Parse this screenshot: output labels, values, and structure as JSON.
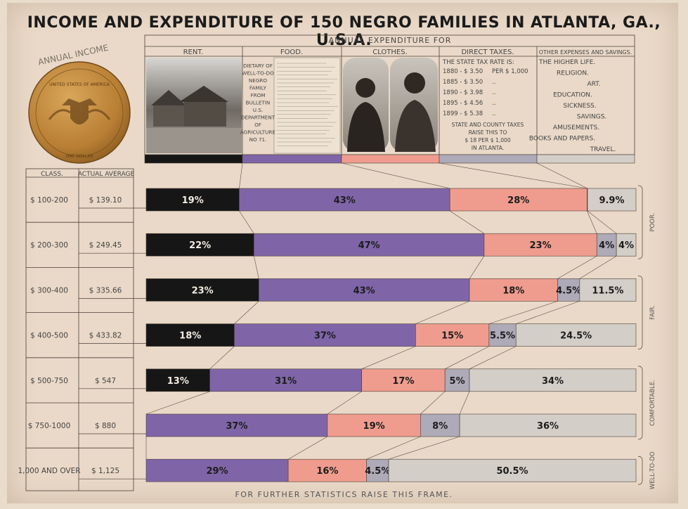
{
  "title": "INCOME AND EXPENDITURE OF 150 NEGRO FAMILIES IN ATLANTA, GA., U.S.A.",
  "footer": "FOR FURTHER STATISTICS RAISE THIS FRAME.",
  "seal": {
    "arc_text": "ANNUAL INCOME",
    "ring_text": "UNITED STATES OF AMERICA",
    "bottom_text": "ONE DOLLAR"
  },
  "header": {
    "group_label": "ANNUAL EXPENDITURE FOR",
    "columns": [
      "RENT.",
      "FOOD.",
      "CLOTHES.",
      "DIRECT TAXES.",
      "OTHER EXPENSES AND SAVINGS."
    ],
    "food_note": [
      "DIETARY OF",
      "WELL-TO-DO",
      "NEGRO",
      "FAMILY",
      "FROM",
      "BULLETIN",
      "U.S.",
      "DEPARTMENT",
      "OF",
      "AGRICULTURE",
      "NO 71."
    ],
    "taxes": {
      "heading": "THE STATE TAX RATE IS:",
      "rows": [
        {
          "year": "1880 - $ 3.50",
          "per": "PER $ 1,000"
        },
        {
          "year": "1885 - $ 3.50",
          "per": ".."
        },
        {
          "year": "1890 - $ 3.98",
          "per": ".."
        },
        {
          "year": "1895 - $ 4.56",
          "per": ".."
        },
        {
          "year": "1899 - $ 5.38",
          "per": ".."
        }
      ],
      "note": [
        "STATE AND COUNTY TAXES",
        "RAISE THIS TO",
        "$ 18 PER $ 1,000",
        "IN ATLANTA."
      ]
    },
    "other": [
      "THE HIGHER LIFE.",
      "RELIGION.",
      "ART.",
      "EDUCATION.",
      "SICKNESS.",
      "SAVINGS.",
      "AMUSEMENTS.",
      "BOOKS AND PAPERS.",
      "TRAVEL."
    ]
  },
  "table": {
    "col1": "CLASS.",
    "col2": "ACTUAL AVERAGE"
  },
  "groups": [
    {
      "label": "POOR.",
      "rows": [
        0,
        1
      ]
    },
    {
      "label": "FAIR.",
      "rows": [
        2,
        3
      ]
    },
    {
      "label": "COMFORTABLE.",
      "rows": [
        4,
        5
      ]
    },
    {
      "label": "WELL-TO-DO",
      "rows": [
        6,
        6
      ]
    }
  ],
  "colors": {
    "rent": "#161616",
    "food": "#7f65a8",
    "clothes": "#ef9c8e",
    "taxes": "#aeaab8",
    "other": "#d3cec7",
    "paper": "#ead9c8",
    "line": "#4a4038"
  },
  "chart_data": {
    "type": "bar",
    "orientation": "horizontal-stacked-100",
    "title": "INCOME AND EXPENDITURE OF 150 NEGRO FAMILIES IN ATLANTA, GA., U.S.A.",
    "series": [
      "Rent",
      "Food",
      "Clothes",
      "Direct Taxes",
      "Other Expenses and Savings"
    ],
    "rows": [
      {
        "class": "$ 100-200",
        "average": "$ 139.10",
        "values": [
          19,
          43,
          28,
          0.1,
          9.9
        ],
        "labels": [
          "19%",
          "43%",
          "28%",
          "",
          "9.9%"
        ]
      },
      {
        "class": "$ 200-300",
        "average": "$ 249.45",
        "values": [
          22,
          47,
          23,
          4,
          4
        ],
        "labels": [
          "22%",
          "47%",
          "23%",
          "4%",
          "4%"
        ]
      },
      {
        "class": "$ 300-400",
        "average": "$ 335.66",
        "values": [
          23,
          43,
          18,
          4.5,
          11.5
        ],
        "labels": [
          "23%",
          "43%",
          "18%",
          "4.5%",
          "11.5%"
        ]
      },
      {
        "class": "$ 400-500",
        "average": "$ 433.82",
        "values": [
          18,
          37,
          15,
          5.5,
          24.5
        ],
        "labels": [
          "18%",
          "37%",
          "15%",
          "5.5%",
          "24.5%"
        ]
      },
      {
        "class": "$ 500-750",
        "average": "$ 547",
        "values": [
          13,
          31,
          17,
          5,
          34
        ],
        "labels": [
          "13%",
          "31%",
          "17%",
          "5%",
          "34%"
        ]
      },
      {
        "class": "$ 750-1000",
        "average": "$ 880",
        "values": [
          0,
          37,
          19,
          8,
          36
        ],
        "labels": [
          "",
          "37%",
          "19%",
          "8%",
          "36%"
        ]
      },
      {
        "class": "1,000 AND OVER",
        "average": "$ 1,125",
        "values": [
          0,
          29,
          16,
          4.5,
          50.5
        ],
        "labels": [
          "",
          "29%",
          "16%",
          "4.5%",
          "50.5%"
        ]
      }
    ]
  }
}
